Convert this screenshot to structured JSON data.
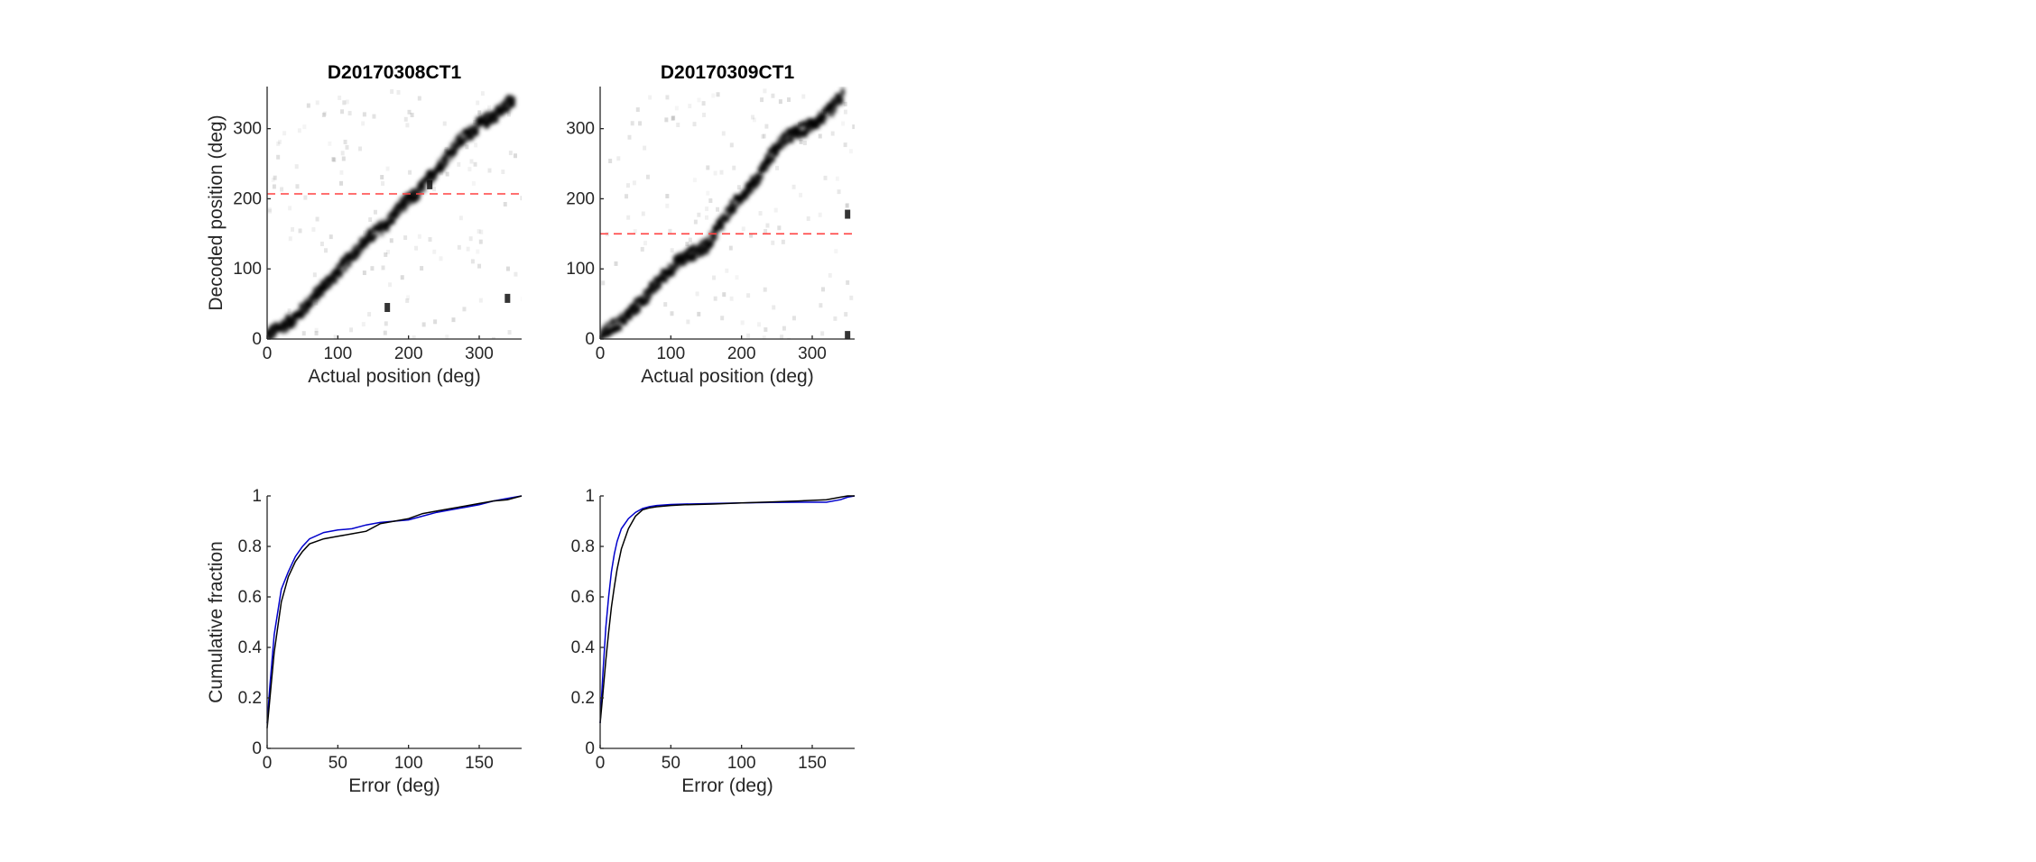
{
  "chart_data": [
    {
      "type": "heatmap",
      "title": "D20170308CT1",
      "xlabel": "Actual position (deg)",
      "ylabel": "Decoded position (deg)",
      "xlim": [
        0,
        360
      ],
      "ylim": [
        0,
        360
      ],
      "xticks": [
        0,
        100,
        200,
        300
      ],
      "yticks": [
        0,
        100,
        200,
        300
      ],
      "colormap": "gray-reversed",
      "reference_line": {
        "y": 207,
        "style": "dashed",
        "color": "#ff4040"
      },
      "density_ridge": [
        [
          0,
          5
        ],
        [
          40,
          30
        ],
        [
          80,
          75
        ],
        [
          100,
          95
        ],
        [
          120,
          120
        ],
        [
          150,
          150
        ],
        [
          170,
          165
        ],
        [
          190,
          190
        ],
        [
          210,
          205
        ],
        [
          230,
          230
        ],
        [
          250,
          255
        ],
        [
          270,
          280
        ],
        [
          300,
          305
        ],
        [
          330,
          325
        ],
        [
          350,
          345
        ]
      ],
      "outlier_blobs": [
        [
          340,
          58
        ],
        [
          230,
          220
        ],
        [
          170,
          45
        ]
      ]
    },
    {
      "type": "heatmap",
      "title": "D20170309CT1",
      "xlabel": "Actual position (deg)",
      "ylabel": "",
      "xlim": [
        0,
        360
      ],
      "ylim": [
        0,
        360
      ],
      "xticks": [
        0,
        100,
        200,
        300
      ],
      "yticks": [
        0,
        100,
        200,
        300
      ],
      "colormap": "gray-reversed",
      "reference_line": {
        "y": 150,
        "style": "dashed",
        "color": "#ff4040"
      },
      "density_ridge": [
        [
          0,
          5
        ],
        [
          30,
          25
        ],
        [
          60,
          55
        ],
        [
          90,
          90
        ],
        [
          110,
          110
        ],
        [
          130,
          122
        ],
        [
          150,
          132
        ],
        [
          170,
          165
        ],
        [
          200,
          205
        ],
        [
          220,
          225
        ],
        [
          240,
          260
        ],
        [
          260,
          285
        ],
        [
          290,
          300
        ],
        [
          320,
          320
        ],
        [
          345,
          350
        ]
      ],
      "outlier_blobs": [
        [
          350,
          178
        ],
        [
          350,
          5
        ]
      ]
    },
    {
      "type": "line",
      "title": "",
      "xlabel": "Error (deg)",
      "ylabel": "Cumulative fraction",
      "xlim": [
        0,
        180
      ],
      "ylim": [
        0,
        1
      ],
      "xticks": [
        0,
        50,
        100,
        150
      ],
      "yticks": [
        0,
        0.2,
        0.4,
        0.6,
        0.8,
        1
      ],
      "series": [
        {
          "color": "#0000cc",
          "x": [
            0,
            2,
            5,
            10,
            15,
            20,
            25,
            30,
            40,
            50,
            60,
            70,
            80,
            90,
            100,
            110,
            120,
            130,
            140,
            150,
            160,
            170,
            180
          ],
          "y": [
            0.1,
            0.25,
            0.45,
            0.63,
            0.7,
            0.76,
            0.8,
            0.83,
            0.855,
            0.865,
            0.87,
            0.885,
            0.895,
            0.9,
            0.905,
            0.92,
            0.935,
            0.945,
            0.955,
            0.965,
            0.98,
            0.99,
            1.0
          ]
        },
        {
          "color": "#000000",
          "x": [
            0,
            2,
            5,
            10,
            15,
            20,
            25,
            30,
            40,
            50,
            60,
            70,
            80,
            90,
            100,
            110,
            120,
            130,
            140,
            150,
            160,
            170,
            180
          ],
          "y": [
            0.08,
            0.2,
            0.38,
            0.58,
            0.68,
            0.74,
            0.78,
            0.81,
            0.83,
            0.84,
            0.85,
            0.86,
            0.89,
            0.9,
            0.91,
            0.93,
            0.94,
            0.95,
            0.96,
            0.97,
            0.98,
            0.985,
            1.0
          ]
        }
      ]
    },
    {
      "type": "line",
      "title": "",
      "xlabel": "Error (deg)",
      "ylabel": "",
      "xlim": [
        0,
        180
      ],
      "ylim": [
        0,
        1
      ],
      "xticks": [
        0,
        50,
        100,
        150
      ],
      "yticks": [
        0,
        0.2,
        0.4,
        0.6,
        0.8,
        1
      ],
      "series": [
        {
          "color": "#0000cc",
          "x": [
            0,
            2,
            4,
            6,
            8,
            10,
            12,
            15,
            20,
            25,
            30,
            35,
            40,
            50,
            60,
            80,
            100,
            120,
            140,
            160,
            170,
            175,
            180
          ],
          "y": [
            0.1,
            0.3,
            0.48,
            0.6,
            0.7,
            0.77,
            0.82,
            0.87,
            0.91,
            0.935,
            0.95,
            0.958,
            0.962,
            0.966,
            0.968,
            0.97,
            0.972,
            0.974,
            0.975,
            0.975,
            0.985,
            0.995,
            1.0
          ]
        },
        {
          "color": "#000000",
          "x": [
            0,
            2,
            4,
            6,
            8,
            10,
            12,
            15,
            20,
            25,
            30,
            35,
            40,
            50,
            60,
            80,
            100,
            120,
            140,
            160,
            170,
            175,
            180
          ],
          "y": [
            0.1,
            0.22,
            0.35,
            0.46,
            0.56,
            0.64,
            0.71,
            0.79,
            0.87,
            0.92,
            0.945,
            0.953,
            0.957,
            0.962,
            0.965,
            0.968,
            0.972,
            0.976,
            0.98,
            0.985,
            0.995,
            1.0,
            1.0
          ]
        }
      ]
    }
  ]
}
